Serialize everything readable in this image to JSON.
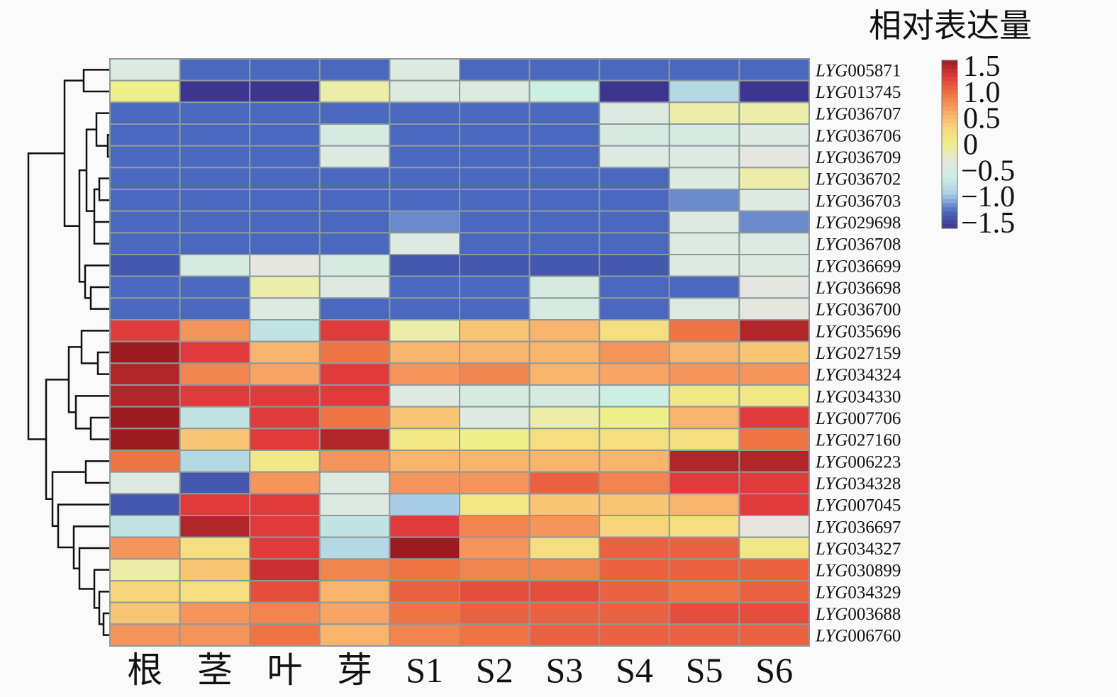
{
  "chart_data": {
    "type": "heatmap",
    "legend_title": "相对表达量",
    "legend_ticks": [
      "1.5",
      "1.0",
      "0.5",
      "0",
      "−0.5",
      "−1.0",
      "−1.5"
    ],
    "legend_tick_values": [
      1.5,
      1.0,
      0.5,
      0,
      -0.5,
      -1.0,
      -1.5
    ],
    "value_range": [
      -1.5,
      1.5
    ],
    "legend_placement": "top-right",
    "colorscale": [
      "#3d3590",
      "#4a68bd",
      "#a9cde6",
      "#cdeee2",
      "#e6e6e0",
      "#eef08c",
      "#f8d57c",
      "#f8a466",
      "#ef7444",
      "#e03a3a",
      "#9a1c20"
    ],
    "columns": [
      "根",
      "茎",
      "叶",
      "芽",
      "S1",
      "S2",
      "S3",
      "S4",
      "S5",
      "S6"
    ],
    "row_prefix": "LYG",
    "rows": [
      "005871",
      "013745",
      "036707",
      "036706",
      "036709",
      "036702",
      "036703",
      "029698",
      "036708",
      "036699",
      "036698",
      "036700",
      "035696",
      "027159",
      "034324",
      "034330",
      "007706",
      "027160",
      "006223",
      "034328",
      "007045",
      "036697",
      "034327",
      "030899",
      "034329",
      "003688",
      "006760"
    ],
    "values": [
      [
        -0.4,
        -1.2,
        -1.2,
        -1.2,
        -0.4,
        -1.2,
        -1.2,
        -1.2,
        -1.2,
        -1.2
      ],
      [
        0.0,
        -1.5,
        -1.5,
        -0.1,
        -0.4,
        -0.4,
        -0.6,
        -1.5,
        -0.8,
        -1.5
      ],
      [
        -1.2,
        -1.2,
        -1.2,
        -1.2,
        -1.2,
        -1.2,
        -1.2,
        -0.4,
        -0.1,
        -0.1
      ],
      [
        -1.2,
        -1.2,
        -1.2,
        -0.5,
        -1.2,
        -1.2,
        -1.2,
        -0.5,
        -0.5,
        -0.4
      ],
      [
        -1.2,
        -1.2,
        -1.2,
        -0.4,
        -1.2,
        -1.2,
        -1.2,
        -0.4,
        -0.4,
        -0.3
      ],
      [
        -1.2,
        -1.2,
        -1.2,
        -1.2,
        -1.2,
        -1.2,
        -1.2,
        -1.2,
        -0.4,
        -0.1
      ],
      [
        -1.2,
        -1.2,
        -1.2,
        -1.2,
        -1.2,
        -1.2,
        -1.2,
        -1.2,
        -1.1,
        -0.4
      ],
      [
        -1.2,
        -1.2,
        -1.2,
        -1.2,
        -1.1,
        -1.2,
        -1.2,
        -1.2,
        -0.4,
        -1.1
      ],
      [
        -1.2,
        -1.2,
        -1.2,
        -1.2,
        -0.4,
        -1.2,
        -1.2,
        -1.2,
        -0.4,
        -0.4
      ],
      [
        -1.3,
        -0.5,
        -0.3,
        -0.5,
        -1.3,
        -1.3,
        -1.3,
        -1.3,
        -0.4,
        -0.4
      ],
      [
        -1.2,
        -1.2,
        -0.1,
        -0.4,
        -1.2,
        -1.2,
        -0.5,
        -1.2,
        -1.2,
        -0.3
      ],
      [
        -1.2,
        -1.2,
        -0.4,
        -1.2,
        -1.2,
        -1.2,
        -0.5,
        -1.2,
        -0.4,
        -0.3
      ],
      [
        1.2,
        0.7,
        -0.7,
        1.2,
        -0.1,
        0.4,
        0.5,
        0.2,
        0.9,
        1.4
      ],
      [
        1.6,
        1.2,
        0.5,
        0.9,
        0.5,
        0.5,
        0.5,
        0.7,
        0.5,
        0.4
      ],
      [
        1.4,
        0.8,
        0.6,
        1.2,
        0.7,
        0.8,
        0.5,
        0.6,
        0.7,
        0.7
      ],
      [
        1.4,
        1.2,
        1.2,
        1.2,
        -0.4,
        -0.5,
        -0.5,
        -0.6,
        0.1,
        0.1
      ],
      [
        1.6,
        -0.7,
        1.2,
        0.9,
        0.4,
        -0.4,
        -0.1,
        0.0,
        0.5,
        1.2
      ],
      [
        1.6,
        0.4,
        1.2,
        1.4,
        0.1,
        0.0,
        0.2,
        0.2,
        0.2,
        0.9
      ],
      [
        0.9,
        -0.8,
        0.1,
        0.7,
        0.5,
        0.5,
        0.5,
        0.5,
        1.4,
        1.4
      ],
      [
        -0.4,
        -1.3,
        0.7,
        -0.4,
        0.7,
        0.7,
        1.0,
        0.8,
        1.2,
        1.2
      ],
      [
        -1.3,
        1.2,
        1.2,
        -0.4,
        -0.9,
        0.1,
        0.4,
        0.4,
        0.5,
        1.2
      ],
      [
        -0.7,
        1.4,
        1.2,
        -0.7,
        1.2,
        0.8,
        0.7,
        0.3,
        0.2,
        -0.3
      ],
      [
        0.7,
        0.2,
        1.2,
        -0.8,
        1.5,
        0.7,
        0.2,
        1.0,
        1.0,
        0.1
      ],
      [
        -0.1,
        0.4,
        1.3,
        0.8,
        0.9,
        0.8,
        0.8,
        1.0,
        1.0,
        1.0
      ],
      [
        0.3,
        0.2,
        1.1,
        0.5,
        1.0,
        1.1,
        1.1,
        1.0,
        0.9,
        1.0
      ],
      [
        0.4,
        0.7,
        0.8,
        0.6,
        0.9,
        1.0,
        1.0,
        1.0,
        1.1,
        1.1
      ],
      [
        0.7,
        0.7,
        0.9,
        0.5,
        0.8,
        0.9,
        1.0,
        1.0,
        1.0,
        1.0
      ]
    ],
    "row_dendrogram": true
  }
}
